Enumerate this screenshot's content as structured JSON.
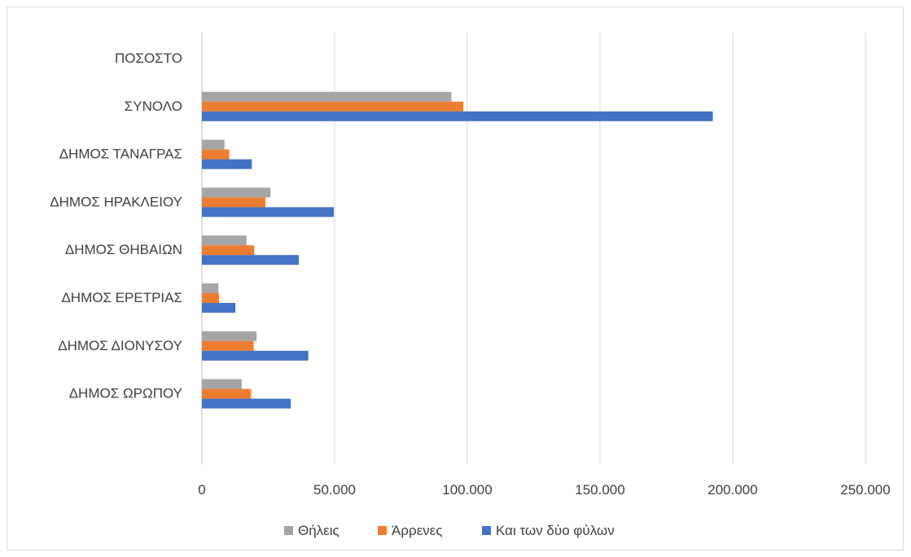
{
  "chart_data": {
    "type": "bar",
    "orientation": "horizontal",
    "title": "",
    "categories": [
      "ΠΟΣΟΣΤΟ",
      "ΣΥΝΟΛΟ",
      "ΔΗΜΟΣ ΤΑΝΑΓΡΑΣ",
      "ΔΗΜΟΣ ΗΡΑΚΛΕΙΟΥ",
      "ΔΗΜΟΣ ΘΗΒΑΙΩΝ",
      "ΔΗΜΟΣ ΕΡΕΤΡΙΑΣ",
      "ΔΗΜΟΣ ΔΙΟΝΥΣΟΥ",
      "ΔΗΜΟΣ ΩΡΩΠΟΥ"
    ],
    "series": [
      {
        "name": "Θήλεις",
        "color": "#a5a5a5",
        "values": [
          0,
          94000,
          8500,
          25800,
          16800,
          6200,
          20600,
          15000
        ]
      },
      {
        "name": "Άρρενες",
        "color": "#ed7d31",
        "values": [
          0,
          98500,
          10300,
          23900,
          19700,
          6400,
          19500,
          18500
        ]
      },
      {
        "name": "Και των δύο φύλων",
        "color": "#4472c4",
        "values": [
          0,
          192500,
          18800,
          49700,
          36500,
          12600,
          40100,
          33500
        ]
      }
    ],
    "xlim": [
      0,
      250000
    ],
    "xticks": [
      0,
      50000,
      100000,
      150000,
      200000,
      250000
    ],
    "xtick_labels": [
      "0",
      "50.000",
      "100.000",
      "150.000",
      "200.000",
      "250.000"
    ],
    "grid": true,
    "legend_position": "bottom"
  }
}
